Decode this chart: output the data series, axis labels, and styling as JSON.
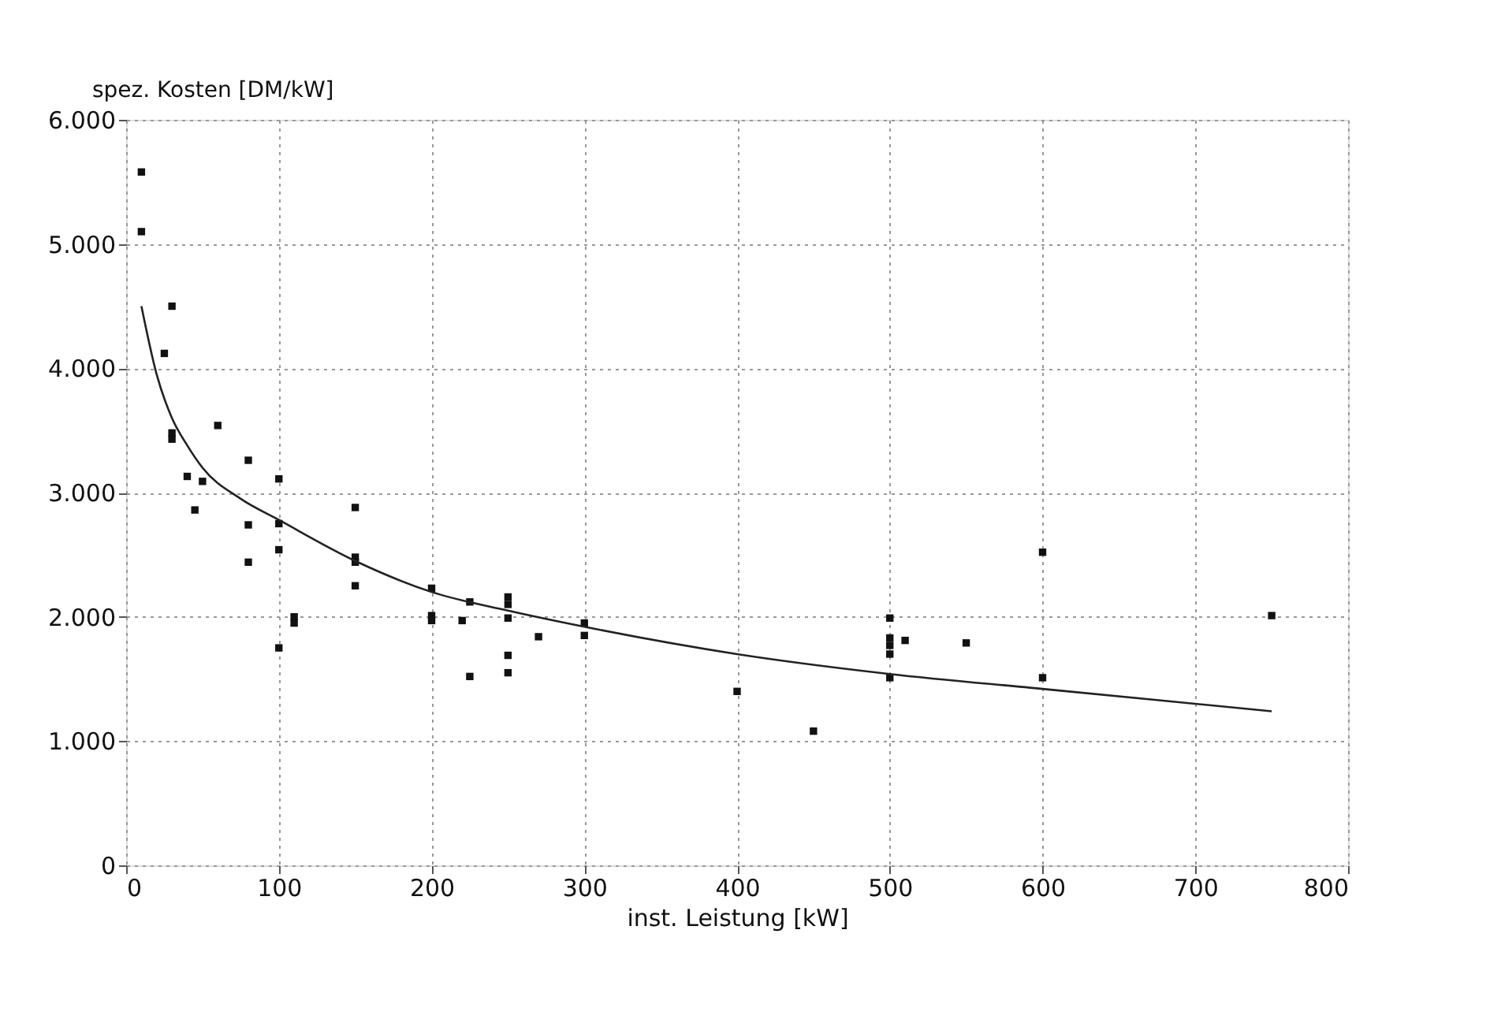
{
  "chart_data": {
    "type": "scatter",
    "xlabel": "inst. Leistung [kW]",
    "ylabel": "spez. Kosten [DM/kW]",
    "xlim": [
      0,
      800
    ],
    "xticks": [
      0,
      100,
      200,
      300,
      400,
      500,
      600,
      700,
      800
    ],
    "ylim": [
      0,
      6000
    ],
    "yticks": [
      {
        "value": 0,
        "label": "0"
      },
      {
        "value": 1000,
        "label": "1.000"
      },
      {
        "value": 2000,
        "label": "2.000"
      },
      {
        "value": 3000,
        "label": "3.000"
      },
      {
        "value": 4000,
        "label": "4.000"
      },
      {
        "value": 5000,
        "label": "5.000"
      },
      {
        "value": 6000,
        "label": "6.000"
      }
    ],
    "grid": true,
    "series": [
      {
        "type": "scatter",
        "color": "#111111",
        "marker": "square",
        "x": [
          10,
          10,
          25,
          30,
          30,
          30,
          40,
          45,
          50,
          60,
          80,
          80,
          80,
          100,
          100,
          100,
          100,
          110,
          110,
          150,
          150,
          150,
          150,
          200,
          200,
          200,
          220,
          225,
          225,
          250,
          250,
          250,
          250,
          250,
          270,
          300,
          300,
          400,
          450,
          500,
          500,
          500,
          500,
          500,
          510,
          550,
          600,
          600,
          750
        ],
        "values": [
          5580,
          5100,
          4120,
          4500,
          3480,
          3430,
          3130,
          2860,
          3090,
          3540,
          3260,
          2740,
          2440,
          3110,
          2750,
          2540,
          1750,
          2000,
          1950,
          2880,
          2480,
          2440,
          2250,
          2230,
          2010,
          1970,
          1970,
          2120,
          1520,
          2160,
          2100,
          1990,
          1690,
          1550,
          1840,
          1950,
          1850,
          1400,
          1080,
          1990,
          1830,
          1770,
          1700,
          1510,
          1810,
          1790,
          2520,
          1510,
          2010
        ]
      },
      {
        "type": "line",
        "color": "#222222",
        "marker": "none",
        "line_style": "solid",
        "x": [
          10,
          20,
          30,
          40,
          50,
          75,
          100,
          150,
          200,
          250,
          300,
          400,
          500,
          600,
          750
        ],
        "values": [
          4500,
          3950,
          3600,
          3380,
          3200,
          2950,
          2780,
          2450,
          2200,
          2050,
          1920,
          1700,
          1540,
          1420,
          1240
        ]
      }
    ]
  }
}
